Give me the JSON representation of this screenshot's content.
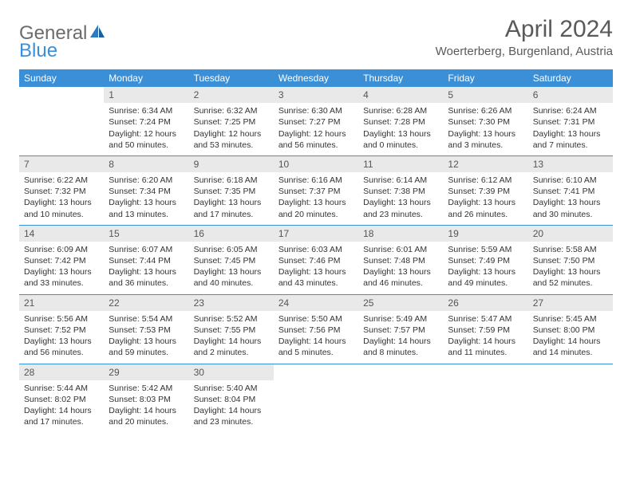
{
  "brand": {
    "part1": "General",
    "part2": "Blue"
  },
  "title": "April 2024",
  "location": "Woerterberg, Burgenland, Austria",
  "colors": {
    "header_bg": "#3b8fd6",
    "daynum_bg": "#e9e9e9",
    "text": "#333333",
    "title_color": "#5a5a5a",
    "logo_gray": "#6b6b6b",
    "logo_blue": "#3b8fd6"
  },
  "dayNames": [
    "Sunday",
    "Monday",
    "Tuesday",
    "Wednesday",
    "Thursday",
    "Friday",
    "Saturday"
  ],
  "weeks": [
    [
      null,
      {
        "n": "1",
        "sr": "Sunrise: 6:34 AM",
        "ss": "Sunset: 7:24 PM",
        "d1": "Daylight: 12 hours",
        "d2": "and 50 minutes."
      },
      {
        "n": "2",
        "sr": "Sunrise: 6:32 AM",
        "ss": "Sunset: 7:25 PM",
        "d1": "Daylight: 12 hours",
        "d2": "and 53 minutes."
      },
      {
        "n": "3",
        "sr": "Sunrise: 6:30 AM",
        "ss": "Sunset: 7:27 PM",
        "d1": "Daylight: 12 hours",
        "d2": "and 56 minutes."
      },
      {
        "n": "4",
        "sr": "Sunrise: 6:28 AM",
        "ss": "Sunset: 7:28 PM",
        "d1": "Daylight: 13 hours",
        "d2": "and 0 minutes."
      },
      {
        "n": "5",
        "sr": "Sunrise: 6:26 AM",
        "ss": "Sunset: 7:30 PM",
        "d1": "Daylight: 13 hours",
        "d2": "and 3 minutes."
      },
      {
        "n": "6",
        "sr": "Sunrise: 6:24 AM",
        "ss": "Sunset: 7:31 PM",
        "d1": "Daylight: 13 hours",
        "d2": "and 7 minutes."
      }
    ],
    [
      {
        "n": "7",
        "sr": "Sunrise: 6:22 AM",
        "ss": "Sunset: 7:32 PM",
        "d1": "Daylight: 13 hours",
        "d2": "and 10 minutes."
      },
      {
        "n": "8",
        "sr": "Sunrise: 6:20 AM",
        "ss": "Sunset: 7:34 PM",
        "d1": "Daylight: 13 hours",
        "d2": "and 13 minutes."
      },
      {
        "n": "9",
        "sr": "Sunrise: 6:18 AM",
        "ss": "Sunset: 7:35 PM",
        "d1": "Daylight: 13 hours",
        "d2": "and 17 minutes."
      },
      {
        "n": "10",
        "sr": "Sunrise: 6:16 AM",
        "ss": "Sunset: 7:37 PM",
        "d1": "Daylight: 13 hours",
        "d2": "and 20 minutes."
      },
      {
        "n": "11",
        "sr": "Sunrise: 6:14 AM",
        "ss": "Sunset: 7:38 PM",
        "d1": "Daylight: 13 hours",
        "d2": "and 23 minutes."
      },
      {
        "n": "12",
        "sr": "Sunrise: 6:12 AM",
        "ss": "Sunset: 7:39 PM",
        "d1": "Daylight: 13 hours",
        "d2": "and 26 minutes."
      },
      {
        "n": "13",
        "sr": "Sunrise: 6:10 AM",
        "ss": "Sunset: 7:41 PM",
        "d1": "Daylight: 13 hours",
        "d2": "and 30 minutes."
      }
    ],
    [
      {
        "n": "14",
        "sr": "Sunrise: 6:09 AM",
        "ss": "Sunset: 7:42 PM",
        "d1": "Daylight: 13 hours",
        "d2": "and 33 minutes."
      },
      {
        "n": "15",
        "sr": "Sunrise: 6:07 AM",
        "ss": "Sunset: 7:44 PM",
        "d1": "Daylight: 13 hours",
        "d2": "and 36 minutes."
      },
      {
        "n": "16",
        "sr": "Sunrise: 6:05 AM",
        "ss": "Sunset: 7:45 PM",
        "d1": "Daylight: 13 hours",
        "d2": "and 40 minutes."
      },
      {
        "n": "17",
        "sr": "Sunrise: 6:03 AM",
        "ss": "Sunset: 7:46 PM",
        "d1": "Daylight: 13 hours",
        "d2": "and 43 minutes."
      },
      {
        "n": "18",
        "sr": "Sunrise: 6:01 AM",
        "ss": "Sunset: 7:48 PM",
        "d1": "Daylight: 13 hours",
        "d2": "and 46 minutes."
      },
      {
        "n": "19",
        "sr": "Sunrise: 5:59 AM",
        "ss": "Sunset: 7:49 PM",
        "d1": "Daylight: 13 hours",
        "d2": "and 49 minutes."
      },
      {
        "n": "20",
        "sr": "Sunrise: 5:58 AM",
        "ss": "Sunset: 7:50 PM",
        "d1": "Daylight: 13 hours",
        "d2": "and 52 minutes."
      }
    ],
    [
      {
        "n": "21",
        "sr": "Sunrise: 5:56 AM",
        "ss": "Sunset: 7:52 PM",
        "d1": "Daylight: 13 hours",
        "d2": "and 56 minutes."
      },
      {
        "n": "22",
        "sr": "Sunrise: 5:54 AM",
        "ss": "Sunset: 7:53 PM",
        "d1": "Daylight: 13 hours",
        "d2": "and 59 minutes."
      },
      {
        "n": "23",
        "sr": "Sunrise: 5:52 AM",
        "ss": "Sunset: 7:55 PM",
        "d1": "Daylight: 14 hours",
        "d2": "and 2 minutes."
      },
      {
        "n": "24",
        "sr": "Sunrise: 5:50 AM",
        "ss": "Sunset: 7:56 PM",
        "d1": "Daylight: 14 hours",
        "d2": "and 5 minutes."
      },
      {
        "n": "25",
        "sr": "Sunrise: 5:49 AM",
        "ss": "Sunset: 7:57 PM",
        "d1": "Daylight: 14 hours",
        "d2": "and 8 minutes."
      },
      {
        "n": "26",
        "sr": "Sunrise: 5:47 AM",
        "ss": "Sunset: 7:59 PM",
        "d1": "Daylight: 14 hours",
        "d2": "and 11 minutes."
      },
      {
        "n": "27",
        "sr": "Sunrise: 5:45 AM",
        "ss": "Sunset: 8:00 PM",
        "d1": "Daylight: 14 hours",
        "d2": "and 14 minutes."
      }
    ],
    [
      {
        "n": "28",
        "sr": "Sunrise: 5:44 AM",
        "ss": "Sunset: 8:02 PM",
        "d1": "Daylight: 14 hours",
        "d2": "and 17 minutes."
      },
      {
        "n": "29",
        "sr": "Sunrise: 5:42 AM",
        "ss": "Sunset: 8:03 PM",
        "d1": "Daylight: 14 hours",
        "d2": "and 20 minutes."
      },
      {
        "n": "30",
        "sr": "Sunrise: 5:40 AM",
        "ss": "Sunset: 8:04 PM",
        "d1": "Daylight: 14 hours",
        "d2": "and 23 minutes."
      },
      null,
      null,
      null,
      null
    ]
  ]
}
